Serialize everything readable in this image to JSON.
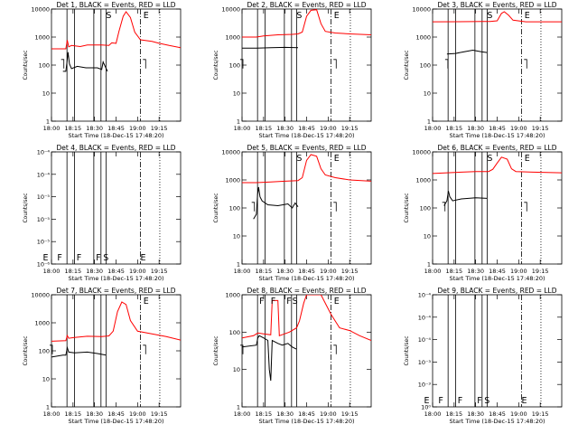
{
  "x_ticks": [
    "18:00",
    "18:15",
    "18:30",
    "18:45",
    "19:00",
    "19:15"
  ],
  "x_label": "Start Time (18-Dec-15 17:48:20)",
  "y_label": "Counts/sec",
  "colors": {
    "events": "#000000",
    "lld": "#ff0000",
    "axes": "#000000"
  },
  "chart_data": [
    {
      "type": "line",
      "title": "Det 1, BLACK = Events, RED = LLD",
      "yscale": "log",
      "ylim": [
        1,
        10000
      ],
      "y_tick_labels": [
        "1",
        "10",
        "100",
        "1000",
        "10000"
      ],
      "xlim": [
        0,
        90
      ],
      "lld": [
        [
          0,
          380
        ],
        [
          10,
          380
        ],
        [
          11,
          780
        ],
        [
          12,
          450
        ],
        [
          14,
          500
        ],
        [
          20,
          460
        ],
        [
          25,
          520
        ],
        [
          35,
          520
        ],
        [
          40,
          500
        ],
        [
          42,
          620
        ],
        [
          45,
          600
        ],
        [
          47,
          1600
        ],
        [
          50,
          5500
        ],
        [
          52,
          8000
        ],
        [
          55,
          5000
        ],
        [
          58,
          1500
        ],
        [
          62,
          800
        ],
        [
          70,
          700
        ],
        [
          75,
          600
        ],
        [
          82,
          500
        ],
        [
          90,
          420
        ]
      ],
      "events": [
        [
          8,
          60
        ],
        [
          10,
          60
        ],
        [
          10.8,
          130
        ],
        [
          11.5,
          290
        ],
        [
          12.5,
          110
        ],
        [
          14,
          75
        ],
        [
          18,
          90
        ],
        [
          24,
          80
        ],
        [
          32,
          80
        ],
        [
          35,
          70
        ],
        [
          36,
          130
        ],
        [
          37,
          100
        ],
        [
          39,
          60
        ]
      ],
      "vlines": [
        {
          "x": 10.8,
          "style": "solid"
        },
        {
          "x": 16,
          "style": "solid"
        },
        {
          "x": 29.5,
          "style": "solid"
        },
        {
          "x": 34.5,
          "style": "solid"
        },
        {
          "x": 38,
          "style": "solid"
        },
        {
          "x": 62,
          "style": "dashdot"
        },
        {
          "x": 75.5,
          "style": "dotted"
        }
      ],
      "letters": [
        {
          "x": 38,
          "t": "S"
        },
        {
          "x": 64,
          "t": "E"
        }
      ],
      "events_end_marks": [
        {
          "x": 8
        },
        {
          "x": 65
        }
      ]
    },
    {
      "type": "line",
      "title": "Det 2, BLACK = Events, RED = LLD",
      "yscale": "log",
      "ylim": [
        1,
        10000
      ],
      "y_tick_labels": [
        "1",
        "10",
        "100",
        "1000",
        "10000"
      ],
      "xlim": [
        0,
        90
      ],
      "lld": [
        [
          0,
          1000
        ],
        [
          10,
          1000
        ],
        [
          15,
          1100
        ],
        [
          25,
          1200
        ],
        [
          35,
          1250
        ],
        [
          39,
          1300
        ],
        [
          42,
          1500
        ],
        [
          45,
          5500
        ],
        [
          48,
          9000
        ],
        [
          52,
          9500
        ],
        [
          55,
          3000
        ],
        [
          58,
          1600
        ],
        [
          65,
          1400
        ],
        [
          75,
          1300
        ],
        [
          90,
          1200
        ]
      ],
      "events": [
        [
          0,
          400
        ],
        [
          10,
          400
        ],
        [
          20,
          420
        ],
        [
          30,
          430
        ],
        [
          39,
          420
        ]
      ],
      "vlines": [
        {
          "x": 10.8,
          "style": "solid"
        },
        {
          "x": 16,
          "style": "solid"
        },
        {
          "x": 29.5,
          "style": "solid"
        },
        {
          "x": 34.5,
          "style": "solid"
        },
        {
          "x": 38,
          "style": "solid"
        },
        {
          "x": 62,
          "style": "dashdot"
        },
        {
          "x": 75.5,
          "style": "dotted"
        }
      ],
      "letters": [
        {
          "x": 38,
          "t": "S"
        },
        {
          "x": 64,
          "t": "E"
        }
      ],
      "events_end_marks": [
        {
          "x": 0
        },
        {
          "x": 65
        }
      ]
    },
    {
      "type": "line",
      "title": "Det 3, BLACK = Events, RED = LLD",
      "yscale": "log",
      "ylim": [
        1,
        10000
      ],
      "y_tick_labels": [
        "1",
        "10",
        "100",
        "1000",
        "10000"
      ],
      "xlim": [
        0,
        90
      ],
      "lld": [
        [
          0,
          3500
        ],
        [
          35,
          3600
        ],
        [
          40,
          3600
        ],
        [
          45,
          3800
        ],
        [
          48,
          7000
        ],
        [
          50,
          8000
        ],
        [
          53,
          6000
        ],
        [
          56,
          4000
        ],
        [
          65,
          3500
        ],
        [
          90,
          3500
        ]
      ],
      "events": [
        [
          10,
          250
        ],
        [
          16,
          260
        ],
        [
          22,
          300
        ],
        [
          28,
          340
        ],
        [
          34,
          300
        ],
        [
          38,
          280
        ]
      ],
      "vlines": [
        {
          "x": 10.8,
          "style": "solid"
        },
        {
          "x": 16,
          "style": "solid"
        },
        {
          "x": 29.5,
          "style": "solid"
        },
        {
          "x": 34.5,
          "style": "solid"
        },
        {
          "x": 38,
          "style": "solid"
        },
        {
          "x": 62,
          "style": "dashdot"
        },
        {
          "x": 75.5,
          "style": "dotted"
        }
      ],
      "letters": [
        {
          "x": 38,
          "t": "S"
        },
        {
          "x": 64,
          "t": "E"
        }
      ],
      "events_end_marks": [
        {
          "x": 10
        },
        {
          "x": 65
        }
      ]
    },
    {
      "type": "line",
      "title": "Det 4, BLACK = Events, RED = LLD",
      "yscale": "log",
      "ylim": [
        1e-06,
        0.0001
      ],
      "y_tick_labels": [
        "10⁻⁶",
        "10⁻⁵",
        "10⁻⁵",
        "10⁻⁵",
        "10⁻⁴",
        "10⁻⁴"
      ],
      "xlim": [
        0,
        90
      ],
      "lld": [],
      "events": [],
      "vlines": [
        {
          "x": 10.8,
          "style": "solid"
        },
        {
          "x": 16,
          "style": "solid"
        },
        {
          "x": 29.5,
          "style": "solid"
        },
        {
          "x": 34.5,
          "style": "solid"
        },
        {
          "x": 38,
          "style": "solid"
        },
        {
          "x": 62,
          "style": "dashdot"
        },
        {
          "x": 75.5,
          "style": "dotted"
        }
      ],
      "letters": [
        {
          "x": -6,
          "t": "E"
        },
        {
          "x": 4,
          "t": "F"
        },
        {
          "x": 17.5,
          "t": "F"
        },
        {
          "x": 31,
          "t": "F"
        },
        {
          "x": 36,
          "t": "S"
        },
        {
          "x": 62,
          "t": "E"
        }
      ],
      "events_end_marks": []
    },
    {
      "type": "line",
      "title": "Det 5, BLACK = Events, RED = LLD",
      "yscale": "log",
      "ylim": [
        1,
        10000
      ],
      "y_tick_labels": [
        "1",
        "10",
        "100",
        "1000",
        "10000"
      ],
      "xlim": [
        0,
        90
      ],
      "lld": [
        [
          0,
          800
        ],
        [
          10,
          800
        ],
        [
          20,
          850
        ],
        [
          30,
          900
        ],
        [
          39,
          950
        ],
        [
          42,
          1200
        ],
        [
          45,
          5000
        ],
        [
          48,
          8000
        ],
        [
          52,
          7000
        ],
        [
          55,
          2500
        ],
        [
          58,
          1500
        ],
        [
          65,
          1200
        ],
        [
          75,
          1000
        ],
        [
          90,
          900
        ]
      ],
      "events": [
        [
          8,
          40
        ],
        [
          10,
          60
        ],
        [
          10.8,
          300
        ],
        [
          11.5,
          550
        ],
        [
          12.5,
          250
        ],
        [
          14,
          180
        ],
        [
          18,
          130
        ],
        [
          25,
          120
        ],
        [
          32,
          140
        ],
        [
          35,
          100
        ],
        [
          37,
          150
        ],
        [
          39,
          110
        ]
      ],
      "vlines": [
        {
          "x": 10.8,
          "style": "solid"
        },
        {
          "x": 16,
          "style": "solid"
        },
        {
          "x": 29.5,
          "style": "solid"
        },
        {
          "x": 34.5,
          "style": "solid"
        },
        {
          "x": 38,
          "style": "solid"
        },
        {
          "x": 62,
          "style": "dashdot"
        },
        {
          "x": 75.5,
          "style": "dotted"
        }
      ],
      "letters": [
        {
          "x": 38,
          "t": "S"
        },
        {
          "x": 64,
          "t": "E"
        }
      ],
      "events_end_marks": [
        {
          "x": 8
        },
        {
          "x": 65
        }
      ]
    },
    {
      "type": "line",
      "title": "Det 6, BLACK = Events, RED = LLD",
      "yscale": "log",
      "ylim": [
        1,
        10000
      ],
      "y_tick_labels": [
        "1",
        "10",
        "100",
        "1000",
        "10000"
      ],
      "xlim": [
        0,
        90
      ],
      "lld": [
        [
          0,
          1700
        ],
        [
          10,
          1800
        ],
        [
          20,
          1900
        ],
        [
          30,
          2000
        ],
        [
          39,
          2000
        ],
        [
          42,
          2400
        ],
        [
          45,
          4000
        ],
        [
          48,
          6500
        ],
        [
          52,
          5500
        ],
        [
          55,
          2500
        ],
        [
          58,
          2000
        ],
        [
          70,
          1900
        ],
        [
          90,
          1800
        ]
      ],
      "events": [
        [
          8,
          120
        ],
        [
          10,
          180
        ],
        [
          11,
          400
        ],
        [
          12,
          250
        ],
        [
          14,
          180
        ],
        [
          20,
          210
        ],
        [
          30,
          230
        ],
        [
          38,
          220
        ]
      ],
      "vlines": [
        {
          "x": 10.8,
          "style": "solid"
        },
        {
          "x": 16,
          "style": "solid"
        },
        {
          "x": 29.5,
          "style": "solid"
        },
        {
          "x": 34.5,
          "style": "solid"
        },
        {
          "x": 38,
          "style": "solid"
        },
        {
          "x": 62,
          "style": "dashdot"
        },
        {
          "x": 75.5,
          "style": "dotted"
        }
      ],
      "letters": [
        {
          "x": 38,
          "t": "S"
        },
        {
          "x": 64,
          "t": "E"
        }
      ],
      "events_end_marks": [
        {
          "x": 8
        },
        {
          "x": 65
        }
      ]
    },
    {
      "type": "line",
      "title": "Det 7, BLACK = Events, RED = LLD",
      "yscale": "log",
      "ylim": [
        1,
        10000
      ],
      "y_tick_labels": [
        "1",
        "10",
        "100",
        "1000",
        "10000"
      ],
      "xlim": [
        0,
        90
      ],
      "lld": [
        [
          0,
          220
        ],
        [
          10,
          230
        ],
        [
          11,
          350
        ],
        [
          12,
          280
        ],
        [
          16,
          300
        ],
        [
          25,
          330
        ],
        [
          35,
          320
        ],
        [
          40,
          340
        ],
        [
          43,
          500
        ],
        [
          46,
          2500
        ],
        [
          49,
          5500
        ],
        [
          52,
          4500
        ],
        [
          55,
          1200
        ],
        [
          60,
          500
        ],
        [
          70,
          400
        ],
        [
          80,
          320
        ],
        [
          90,
          240
        ]
      ],
      "events": [
        [
          0,
          60
        ],
        [
          8,
          70
        ],
        [
          10,
          70
        ],
        [
          11,
          130
        ],
        [
          12,
          90
        ],
        [
          16,
          85
        ],
        [
          25,
          90
        ],
        [
          32,
          80
        ],
        [
          38,
          70
        ]
      ],
      "vlines": [
        {
          "x": 10.8,
          "style": "solid"
        },
        {
          "x": 16,
          "style": "solid"
        },
        {
          "x": 29.5,
          "style": "solid"
        },
        {
          "x": 34.5,
          "style": "solid"
        },
        {
          "x": 38,
          "style": "solid"
        },
        {
          "x": 62,
          "style": "dashdot"
        },
        {
          "x": 75.5,
          "style": "dotted"
        }
      ],
      "letters": [
        {
          "x": 64,
          "t": "E"
        }
      ],
      "events_end_marks": [
        {
          "x": 0
        },
        {
          "x": 65
        }
      ]
    },
    {
      "type": "line",
      "title": "Det 8, BLACK = Events, RED = LLD",
      "yscale": "log",
      "ylim": [
        1,
        1000
      ],
      "y_tick_labels": [
        "1",
        "10",
        "100",
        "1000"
      ],
      "xlim": [
        0,
        90
      ],
      "lld": [
        [
          0,
          70
        ],
        [
          8,
          80
        ],
        [
          11,
          95
        ],
        [
          15,
          90
        ],
        [
          20,
          85
        ],
        [
          21,
          700
        ],
        [
          25,
          700
        ],
        [
          26,
          80
        ],
        [
          33,
          100
        ],
        [
          38,
          130
        ],
        [
          40,
          200
        ],
        [
          43,
          600
        ],
        [
          45,
          1000
        ],
        [
          48,
          1000
        ],
        [
          55,
          1000
        ],
        [
          62,
          300
        ],
        [
          68,
          130
        ],
        [
          75,
          110
        ],
        [
          82,
          80
        ],
        [
          90,
          60
        ]
      ],
      "events": [
        [
          0,
          40
        ],
        [
          10,
          45
        ],
        [
          11,
          70
        ],
        [
          12,
          80
        ],
        [
          15,
          70
        ],
        [
          18,
          60
        ],
        [
          19,
          10
        ],
        [
          20,
          5
        ],
        [
          21,
          60
        ],
        [
          25,
          50
        ],
        [
          28,
          45
        ],
        [
          32,
          50
        ],
        [
          35,
          40
        ],
        [
          38,
          35
        ]
      ],
      "vlines": [
        {
          "x": 10.8,
          "style": "solid"
        },
        {
          "x": 16,
          "style": "solid"
        },
        {
          "x": 29.5,
          "style": "solid"
        },
        {
          "x": 34.5,
          "style": "solid"
        },
        {
          "x": 38,
          "style": "solid"
        },
        {
          "x": 62,
          "style": "dashdot"
        },
        {
          "x": 75.5,
          "style": "dotted"
        }
      ],
      "letters": [
        {
          "x": 12,
          "t": "F"
        },
        {
          "x": 20,
          "t": "F"
        },
        {
          "x": 31,
          "t": "F"
        },
        {
          "x": 35,
          "t": "S"
        },
        {
          "x": 64,
          "t": "E"
        }
      ],
      "events_end_marks": [
        {
          "x": 0
        },
        {
          "x": 65
        }
      ]
    },
    {
      "type": "line",
      "title": "Det 9, BLACK = Events, RED = LLD",
      "yscale": "log",
      "ylim": [
        1e-06,
        0.0001
      ],
      "y_tick_labels": [
        "10⁰",
        "10⁻³",
        "10⁻³",
        "10⁻⁴",
        "10⁻⁴",
        "10⁻⁴"
      ],
      "xlim": [
        0,
        90
      ],
      "lld": [],
      "events": [],
      "vlines": [
        {
          "x": 10.8,
          "style": "solid"
        },
        {
          "x": 16,
          "style": "solid"
        },
        {
          "x": 29.5,
          "style": "solid"
        },
        {
          "x": 34.5,
          "style": "solid"
        },
        {
          "x": 38,
          "style": "solid"
        },
        {
          "x": 62,
          "style": "dashdot"
        },
        {
          "x": 75.5,
          "style": "dotted"
        }
      ],
      "letters": [
        {
          "x": -6,
          "t": "E"
        },
        {
          "x": 4,
          "t": "F"
        },
        {
          "x": 17.5,
          "t": "F"
        },
        {
          "x": 31,
          "t": "F"
        },
        {
          "x": 36,
          "t": "S"
        },
        {
          "x": 62,
          "t": "E"
        }
      ],
      "events_end_marks": []
    }
  ]
}
